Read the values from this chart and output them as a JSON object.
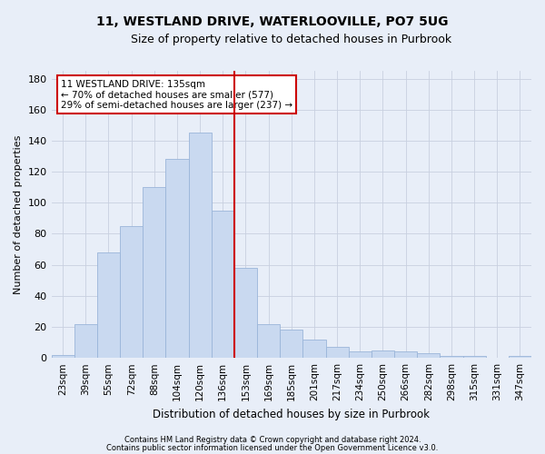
{
  "title1": "11, WESTLAND DRIVE, WATERLOOVILLE, PO7 5UG",
  "title2": "Size of property relative to detached houses in Purbrook",
  "xlabel": "Distribution of detached houses by size in Purbrook",
  "ylabel": "Number of detached properties",
  "bar_labels": [
    "23sqm",
    "39sqm",
    "55sqm",
    "72sqm",
    "88sqm",
    "104sqm",
    "120sqm",
    "136sqm",
    "153sqm",
    "169sqm",
    "185sqm",
    "201sqm",
    "217sqm",
    "234sqm",
    "250sqm",
    "266sqm",
    "282sqm",
    "298sqm",
    "315sqm",
    "331sqm",
    "347sqm"
  ],
  "bar_values": [
    2,
    22,
    68,
    85,
    110,
    128,
    145,
    95,
    58,
    22,
    18,
    12,
    7,
    4,
    5,
    4,
    3,
    1,
    1,
    0,
    1
  ],
  "bar_color": "#c9d9f0",
  "bar_edge_color": "#9ab5d9",
  "vline_color": "#cc0000",
  "annotation_text": "11 WESTLAND DRIVE: 135sqm\n← 70% of detached houses are smaller (577)\n29% of semi-detached houses are larger (237) →",
  "annotation_box_color": "#ffffff",
  "annotation_box_edge": "#cc0000",
  "ylim": [
    0,
    185
  ],
  "yticks": [
    0,
    20,
    40,
    60,
    80,
    100,
    120,
    140,
    160,
    180
  ],
  "footer1": "Contains HM Land Registry data © Crown copyright and database right 2024.",
  "footer2": "Contains public sector information licensed under the Open Government Licence v3.0.",
  "bg_color": "#e8eef8",
  "plot_bg_color": "#e8eef8",
  "grid_color": "#c8d0e0"
}
